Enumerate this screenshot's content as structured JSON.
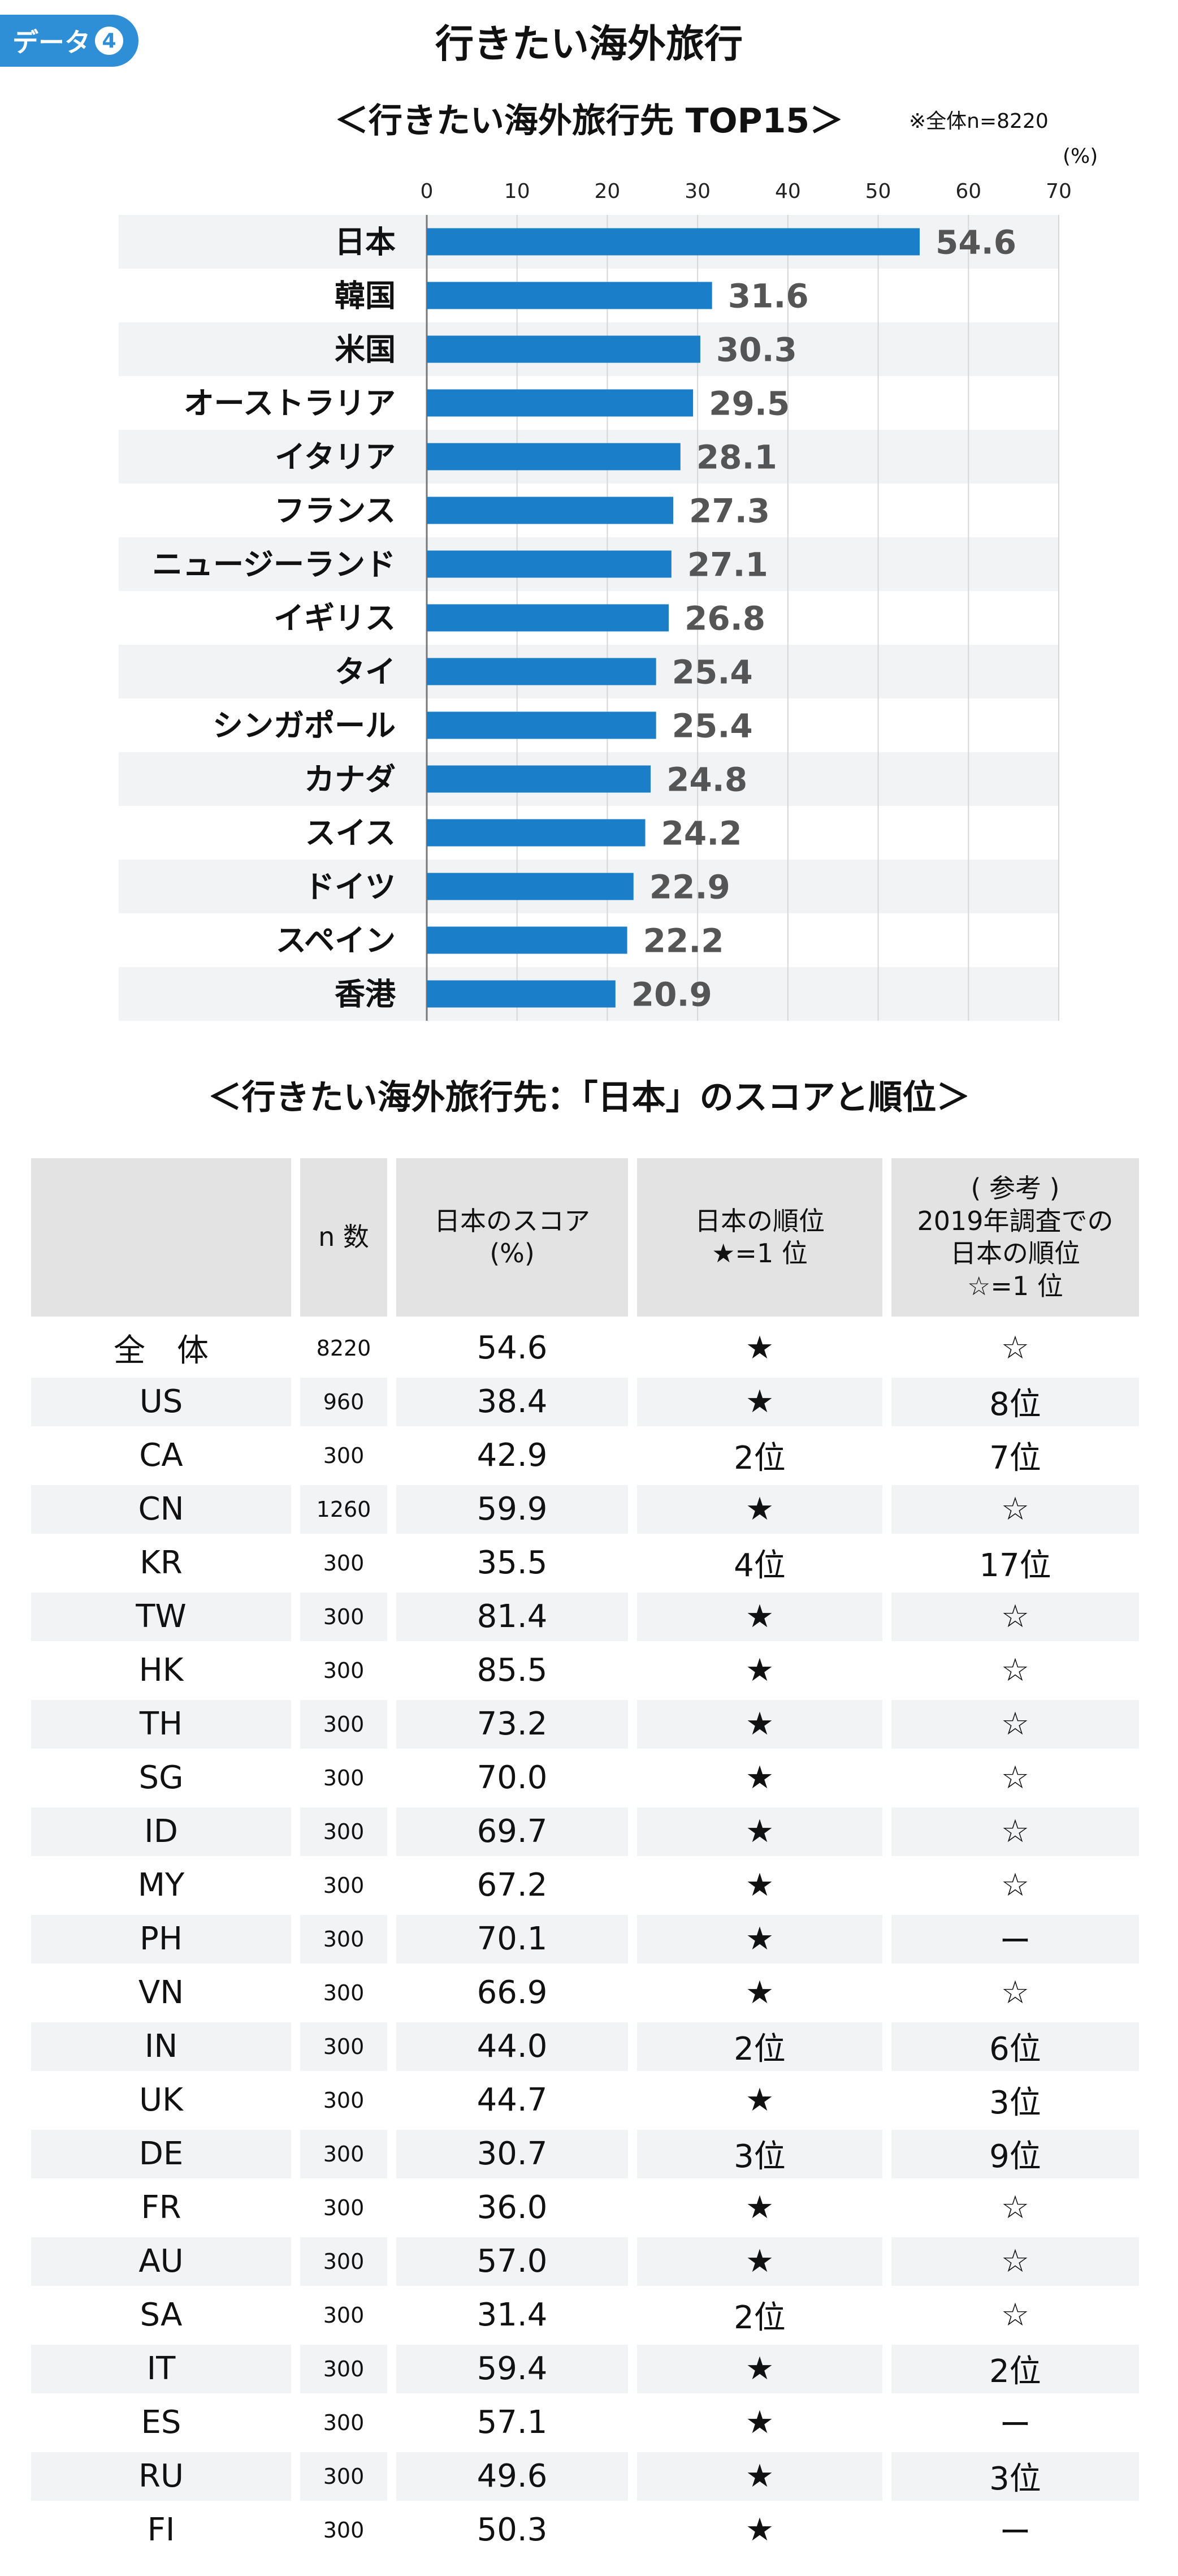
{
  "badge": {
    "label": "データ",
    "number": "4"
  },
  "title": "行きたい海外旅行",
  "chart_section": {
    "title": "＜行きたい海外旅行先 TOP15＞",
    "note": "※全体n=8220",
    "unit": "(%)"
  },
  "chart_data": {
    "type": "bar",
    "orientation": "horizontal",
    "title": "＜行きたい海外旅行先 TOP15＞",
    "xlabel": "(%)",
    "xlim": [
      0,
      70
    ],
    "xticks": [
      0,
      10,
      20,
      30,
      40,
      50,
      60,
      70
    ],
    "grid": true,
    "bar_color": "#1a7fc8",
    "categories": [
      "日本",
      "韓国",
      "米国",
      "オーストラリア",
      "イタリア",
      "フランス",
      "ニュージーランド",
      "イギリス",
      "タイ",
      "シンガポール",
      "カナダ",
      "スイス",
      "ドイツ",
      "スペイン",
      "香港"
    ],
    "values": [
      54.6,
      31.6,
      30.3,
      29.5,
      28.1,
      27.3,
      27.1,
      26.8,
      25.4,
      25.4,
      24.8,
      24.2,
      22.9,
      22.2,
      20.9
    ],
    "value_labels": [
      "54.6",
      "31.6",
      "30.3",
      "29.5",
      "28.1",
      "27.3",
      "27.1",
      "26.8",
      "25.4",
      "25.4",
      "24.8",
      "24.2",
      "22.9",
      "22.2",
      "20.9"
    ]
  },
  "table_section": {
    "title": "＜行きたい海外旅行先：「日本」のスコアと順位＞"
  },
  "table": {
    "headers": [
      "",
      "n 数",
      "日本のスコア\n(%)",
      "日本の順位\n★=1 位",
      "( 参考 )\n2019年調査での\n日本の順位\n☆=1 位"
    ],
    "rows": [
      [
        "全　体",
        "8220",
        "54.6",
        "★",
        "☆"
      ],
      [
        "US",
        "960",
        "38.4",
        "★",
        "8位"
      ],
      [
        "CA",
        "300",
        "42.9",
        "2位",
        "7位"
      ],
      [
        "CN",
        "1260",
        "59.9",
        "★",
        "☆"
      ],
      [
        "KR",
        "300",
        "35.5",
        "4位",
        "17位"
      ],
      [
        "TW",
        "300",
        "81.4",
        "★",
        "☆"
      ],
      [
        "HK",
        "300",
        "85.5",
        "★",
        "☆"
      ],
      [
        "TH",
        "300",
        "73.2",
        "★",
        "☆"
      ],
      [
        "SG",
        "300",
        "70.0",
        "★",
        "☆"
      ],
      [
        "ID",
        "300",
        "69.7",
        "★",
        "☆"
      ],
      [
        "MY",
        "300",
        "67.2",
        "★",
        "☆"
      ],
      [
        "PH",
        "300",
        "70.1",
        "★",
        "ー"
      ],
      [
        "VN",
        "300",
        "66.9",
        "★",
        "☆"
      ],
      [
        "IN",
        "300",
        "44.0",
        "2位",
        "6位"
      ],
      [
        "UK",
        "300",
        "44.7",
        "★",
        "3位"
      ],
      [
        "DE",
        "300",
        "30.7",
        "3位",
        "9位"
      ],
      [
        "FR",
        "300",
        "36.0",
        "★",
        "☆"
      ],
      [
        "AU",
        "300",
        "57.0",
        "★",
        "☆"
      ],
      [
        "SA",
        "300",
        "31.4",
        "2位",
        "☆"
      ],
      [
        "IT",
        "300",
        "59.4",
        "★",
        "2位"
      ],
      [
        "ES",
        "300",
        "57.1",
        "★",
        "ー"
      ],
      [
        "RU",
        "300",
        "49.6",
        "★",
        "3位"
      ],
      [
        "FI",
        "300",
        "50.3",
        "★",
        "ー"
      ]
    ]
  }
}
